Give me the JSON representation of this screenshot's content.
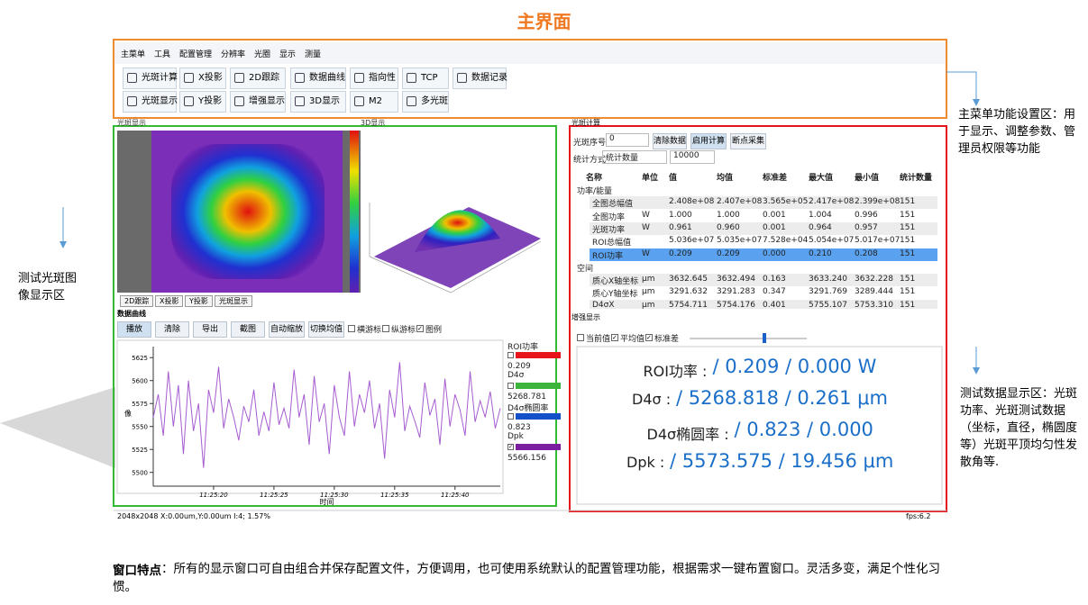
{
  "title": "主界面",
  "menu_tabs": [
    "主菜单",
    "工具",
    "配置管理",
    "分辨率",
    "光圈",
    "显示",
    "测量"
  ],
  "toolbar": {
    "row1": [
      "光斑计算",
      "X投影",
      "2D跟踪",
      "数据曲线",
      "指向性",
      "TCP",
      "数据记录"
    ],
    "row2": [
      "光斑显示",
      "Y投影",
      "增强显示",
      "3D显示",
      "M2",
      "多光斑"
    ]
  },
  "annotations": {
    "menu": "主菜单功能设置区：用于显示、调整参数、管理员权限等功能",
    "image": "测试光斑图像显示区",
    "data": "测试数据显示区：光斑功率、光斑测试数据（坐标，直径，椭圆度等）光斑平顶均匀性发散角等."
  },
  "left_panel": {
    "titles": [
      "光斑显示",
      "3D显示"
    ],
    "tabs": [
      "2D跟踪",
      "X投影",
      "Y投影",
      "光斑显示"
    ]
  },
  "curve_panel": {
    "title": "数据曲线",
    "buttons": [
      "播放",
      "清除",
      "导出",
      "截图",
      "自动缩放",
      "切换均值"
    ],
    "checks": [
      "横游标",
      "纵游标",
      "图例"
    ],
    "checked": [
      false,
      false,
      true
    ],
    "plot": {
      "type": "line",
      "ylabel": "像",
      "xlabel": "时间",
      "xlim": [
        0,
        69
      ],
      "ylim": [
        5485,
        5637
      ],
      "yticks": [
        5500,
        5525,
        5550,
        5575,
        5600,
        5625
      ],
      "xticks": [
        {
          "value": 12,
          "label": "11:25:20"
        },
        {
          "value": 24,
          "label": "11:25:25"
        },
        {
          "value": 36,
          "label": "11:25:30"
        },
        {
          "value": 48,
          "label": "11:25:35"
        },
        {
          "value": 60,
          "label": "11:25:40"
        }
      ],
      "series": [
        {
          "name": "ROI功率",
          "color": "#e8141c",
          "current": 0.209,
          "shown": false
        },
        {
          "name": "D4σ",
          "color": "#3cb43c",
          "current": 5268.781,
          "shown": false
        },
        {
          "name": "D4σ椭圆率",
          "color": "#1450c8",
          "current": 0.823,
          "shown": false
        },
        {
          "name": "Dpk",
          "color": "#7a1fa0",
          "current": 5566.156,
          "shown": true,
          "values": [
            5560,
            5585,
            5540,
            5610,
            5550,
            5595,
            5520,
            5600,
            5545,
            5575,
            5505,
            5590,
            5565,
            5615,
            5548,
            5580,
            5560,
            5535,
            5572,
            5555,
            5590,
            5540,
            5566,
            5545,
            5598,
            5552,
            5570,
            5548,
            5612,
            5560,
            5585,
            5530,
            5605,
            5555,
            5575,
            5520,
            5595,
            5560,
            5540,
            5610,
            5550,
            5585,
            5565,
            5600,
            5548,
            5575,
            5515,
            5590,
            5560,
            5620,
            5545,
            5572,
            5556,
            5538,
            5598,
            5562,
            5580,
            5530,
            5602,
            5550,
            5585,
            5568,
            5540,
            5610,
            5555,
            5578,
            5560,
            5588,
            5548,
            5570
          ]
        }
      ]
    }
  },
  "status": {
    "left": "2048x2048   X:0.00um,Y:0.00um I:4; 1.57%",
    "right": "fps:6.2"
  },
  "calc_panel": {
    "title": "光斑计算",
    "seq_label": "光斑序号",
    "seq_value": "0",
    "buttons": [
      "清除数据",
      "启用计算",
      "断点采集"
    ],
    "stat_label": "统计方式",
    "stat_value": "统计数量",
    "count": "10000",
    "table": {
      "header": [
        "名称",
        "单位",
        "值",
        "均值",
        "标准差",
        "最大值",
        "最小值",
        "统计数量"
      ],
      "groups": [
        {
          "name": "功率/能量",
          "rows": [
            [
              "全图总幅值",
              "",
              "2.408e+08",
              "2.407e+08",
              "3.565e+05",
              "2.417e+08",
              "2.399e+08",
              "151"
            ],
            [
              "全图功率",
              "W",
              "1.000",
              "1.000",
              "0.001",
              "1.004",
              "0.996",
              "151"
            ],
            [
              "光斑功率",
              "W",
              "0.961",
              "0.960",
              "0.001",
              "0.964",
              "0.957",
              "151"
            ],
            [
              "ROI总幅值",
              "",
              "5.036e+07",
              "5.035e+07",
              "7.528e+04",
              "5.054e+07",
              "5.017e+07",
              "151"
            ],
            [
              "ROI功率",
              "W",
              "0.209",
              "0.209",
              "0.000",
              "0.210",
              "0.208",
              "151"
            ]
          ]
        },
        {
          "name": "空间",
          "rows": [
            [
              "质心X轴坐标",
              "μm",
              "3632.645",
              "3632.494",
              "0.163",
              "3633.240",
              "3632.228",
              "151"
            ],
            [
              "质心Y轴坐标",
              "μm",
              "3291.632",
              "3291.283",
              "0.347",
              "3291.769",
              "3289.444",
              "151"
            ],
            [
              "D4σX",
              "μm",
              "5754.711",
              "5754.176",
              "0.401",
              "5755.107",
              "5753.310",
              "151"
            ]
          ]
        }
      ]
    }
  },
  "enhance_panel": {
    "title": "增强显示",
    "checks": [
      "当前值",
      "平均值",
      "标准差"
    ],
    "checked": [
      false,
      true,
      true
    ],
    "lines": [
      {
        "label": "ROI功率 :",
        "value": "/ 0.209 / 0.000 W"
      },
      {
        "label": "D4σ :",
        "value": "/ 5268.818 / 0.261 μm"
      },
      {
        "label": "D4σ椭圆率 :",
        "value": "/ 0.823 / 0.000"
      },
      {
        "label": "Dpk :",
        "value": "/ 5573.575 / 19.456 μm"
      }
    ]
  },
  "footer": {
    "bold": "窗口特点",
    "text": "：所有的显示窗口可自由组合并保存配置文件，方便调用，也可使用系统默认的配置管理功能，根据需求一键布置窗口。灵活多变，满足个性化习惯。"
  }
}
